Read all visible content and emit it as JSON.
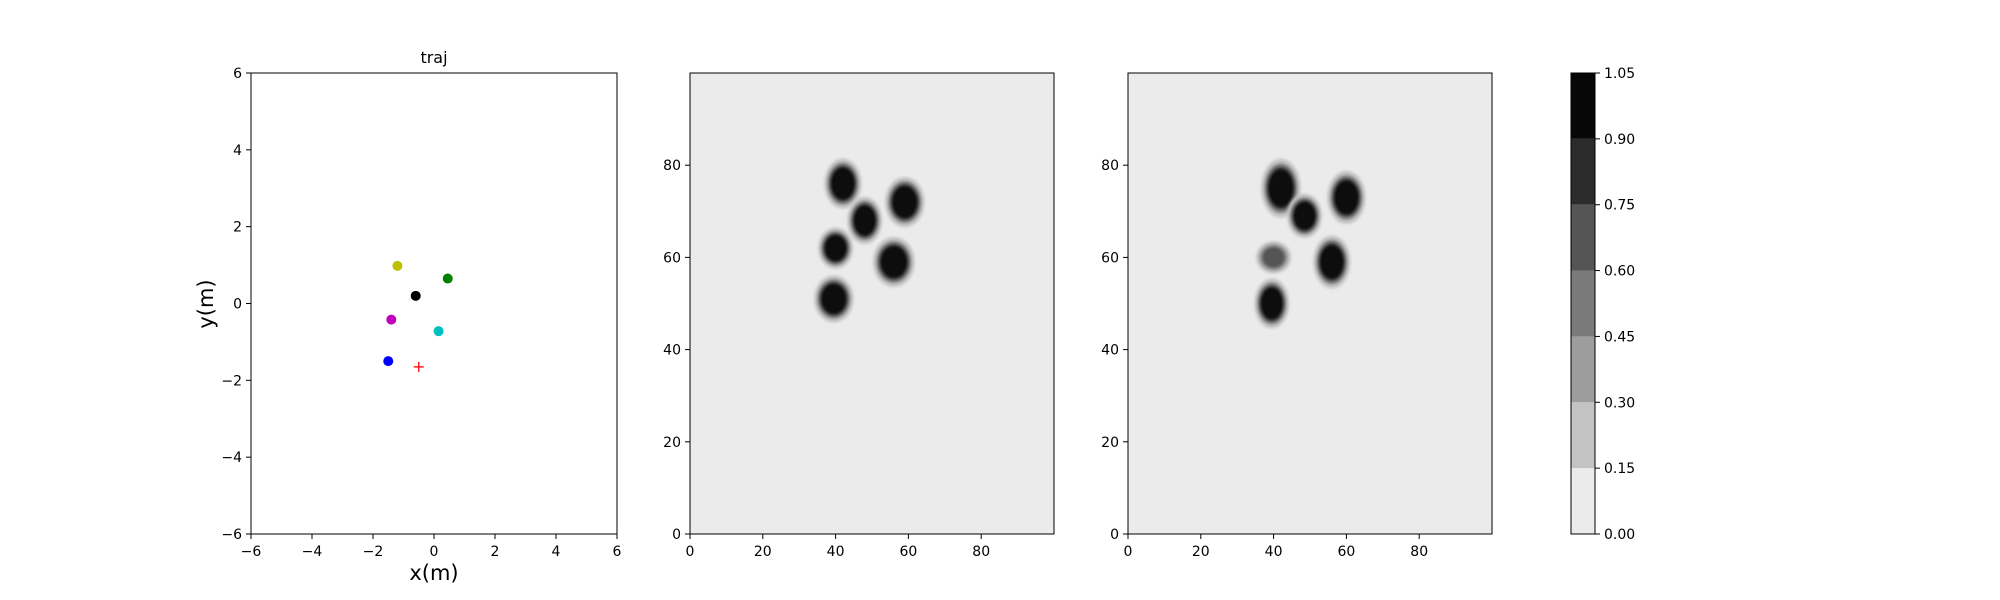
{
  "chart_data": [
    {
      "type": "scatter",
      "title": "traj",
      "xlabel": "x(m)",
      "ylabel": "y(m)",
      "xlim": [
        -6,
        6
      ],
      "ylim": [
        -6,
        6
      ],
      "xticks": [
        -6,
        -4,
        -2,
        0,
        2,
        4,
        6
      ],
      "yticks": [
        -6,
        -4,
        -2,
        0,
        2,
        4,
        6
      ],
      "xtick_labels": [
        "−6",
        "−4",
        "−2",
        "0",
        "2",
        "4",
        "6"
      ],
      "ytick_labels": [
        "−6",
        "−4",
        "−2",
        "0",
        "2",
        "4",
        "6"
      ],
      "grid": false,
      "points": [
        {
          "x": -1.2,
          "y": 0.98,
          "color": "#bfbf00",
          "marker": "circle"
        },
        {
          "x": 0.45,
          "y": 0.65,
          "color": "#008000",
          "marker": "circle"
        },
        {
          "x": -0.6,
          "y": 0.2,
          "color": "#000000",
          "marker": "circle"
        },
        {
          "x": -1.4,
          "y": -0.42,
          "color": "#bf00bf",
          "marker": "circle"
        },
        {
          "x": 0.15,
          "y": -0.72,
          "color": "#00bfbf",
          "marker": "circle"
        },
        {
          "x": -1.5,
          "y": -1.5,
          "color": "#0000ff",
          "marker": "circle"
        },
        {
          "x": -0.5,
          "y": -1.65,
          "color": "#ff0000",
          "marker": "plus"
        }
      ]
    },
    {
      "type": "heatmap",
      "title": "",
      "xlim": [
        0,
        100
      ],
      "ylim": [
        0,
        100
      ],
      "xticks": [
        0,
        20,
        40,
        60,
        80
      ],
      "yticks": [
        0,
        20,
        40,
        60,
        80
      ],
      "grid": false,
      "background_level": 0.05,
      "blobs": [
        {
          "cx": 42,
          "cy": 76,
          "rx": 3.2,
          "ry": 3.4,
          "peak": 1.0
        },
        {
          "cx": 59,
          "cy": 72,
          "rx": 3.4,
          "ry": 3.4,
          "peak": 1.0
        },
        {
          "cx": 48,
          "cy": 68,
          "rx": 3.0,
          "ry": 3.2,
          "peak": 1.0
        },
        {
          "cx": 40,
          "cy": 62,
          "rx": 3.0,
          "ry": 2.8,
          "peak": 1.0
        },
        {
          "cx": 56,
          "cy": 59,
          "rx": 3.6,
          "ry": 3.4,
          "peak": 1.0
        },
        {
          "cx": 39.5,
          "cy": 51,
          "rx": 3.4,
          "ry": 3.2,
          "peak": 1.0
        }
      ]
    },
    {
      "type": "heatmap",
      "title": "",
      "xlim": [
        0,
        100
      ],
      "ylim": [
        0,
        100
      ],
      "xticks": [
        0,
        20,
        40,
        60,
        80
      ],
      "yticks": [
        0,
        20,
        40,
        60,
        80
      ],
      "grid": false,
      "background_level": 0.05,
      "blobs": [
        {
          "cx": 42,
          "cy": 75,
          "rx": 3.4,
          "ry": 4.0,
          "peak": 1.0
        },
        {
          "cx": 60,
          "cy": 73,
          "rx": 3.3,
          "ry": 3.6,
          "peak": 1.0
        },
        {
          "cx": 48.5,
          "cy": 69,
          "rx": 3.0,
          "ry": 3.0,
          "peak": 1.0
        },
        {
          "cx": 40,
          "cy": 60,
          "rx": 3.0,
          "ry": 2.2,
          "peak": 0.62
        },
        {
          "cx": 56,
          "cy": 59,
          "rx": 3.2,
          "ry": 3.6,
          "peak": 1.0
        },
        {
          "cx": 39.5,
          "cy": 50,
          "rx": 3.0,
          "ry": 3.4,
          "peak": 1.0
        }
      ]
    },
    {
      "type": "colorbar",
      "levels": [
        0.0,
        0.15,
        0.3,
        0.45,
        0.6,
        0.75,
        0.9,
        1.05
      ],
      "tick_labels": [
        "0.00",
        "0.15",
        "0.30",
        "0.45",
        "0.60",
        "0.75",
        "0.90",
        "1.05"
      ],
      "colors": [
        "#ebebeb",
        "#c4c4c4",
        "#9d9d9d",
        "#7a7a7a",
        "#555555",
        "#2c2c2c",
        "#070707"
      ]
    }
  ]
}
